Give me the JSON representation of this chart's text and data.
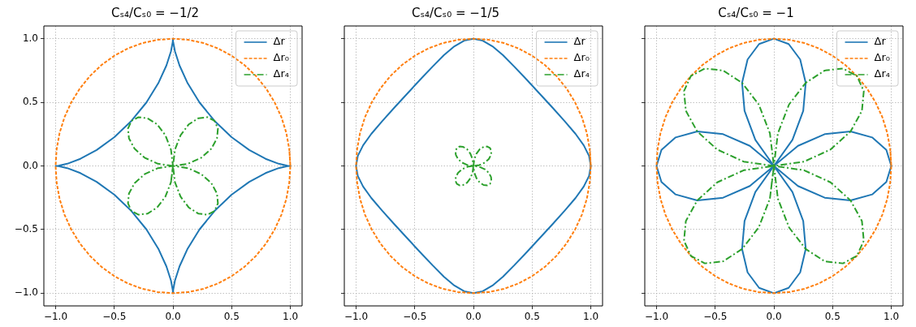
{
  "chart_data": [
    {
      "type": "line",
      "title": "Cₛ₄/Cₛ₀ = −1/2",
      "xlim": [
        -1.1,
        1.1
      ],
      "ylim": [
        -1.1,
        1.1
      ],
      "xticks": [
        {
          "value": -1,
          "label": "−1.0"
        },
        {
          "value": -0.5,
          "label": "−0.5"
        },
        {
          "value": 0,
          "label": "0.0"
        },
        {
          "value": 0.5,
          "label": "0.5"
        },
        {
          "value": 1,
          "label": "1.0"
        }
      ],
      "yticks": [
        {
          "value": -1,
          "label": "−1.0"
        },
        {
          "value": -0.5,
          "label": "−0.5"
        },
        {
          "value": 0,
          "label": "0.0"
        },
        {
          "value": 0.5,
          "label": "0.5"
        },
        {
          "value": 1,
          "label": "1.0"
        }
      ],
      "grid": true,
      "legend": "top right",
      "series": [
        {
          "name": "Δr",
          "color": "#1f77b4",
          "line_style": "solid",
          "x": [
            1,
            0.975,
            0.901,
            0.789,
            0.65,
            0.499,
            0.354,
            0.226,
            0.125,
            0.056,
            0.017,
            0.002,
            0,
            -0.002,
            -0.017,
            -0.056,
            -0.125,
            -0.226,
            -0.354,
            -0.499,
            -0.65,
            -0.789,
            -0.901,
            -0.975,
            -1,
            -0.975,
            -0.901,
            -0.789,
            -0.65,
            -0.499,
            -0.354,
            -0.226,
            -0.125,
            -0.056,
            -0.017,
            -0.002,
            0,
            0.002,
            0.017,
            0.056,
            0.125,
            0.226,
            0.354,
            0.499,
            0.65,
            0.789,
            0.901,
            0.975,
            1,
            0.975
          ],
          "values": [
            0,
            0.002,
            0.017,
            0.056,
            0.125,
            0.226,
            0.354,
            0.499,
            0.65,
            0.789,
            0.901,
            0.975,
            1,
            0.975,
            0.901,
            0.789,
            0.65,
            0.499,
            0.354,
            0.226,
            0.125,
            0.056,
            0.017,
            0.002,
            0,
            -0.002,
            -0.017,
            -0.056,
            -0.125,
            -0.226,
            -0.354,
            -0.499,
            -0.65,
            -0.789,
            -0.901,
            -0.975,
            -1,
            -0.975,
            -0.901,
            -0.789,
            -0.65,
            -0.499,
            -0.354,
            -0.226,
            -0.125,
            -0.056,
            -0.017,
            -0.002,
            0,
            0.002
          ]
        },
        {
          "name": "Δr₀",
          "color": "#ff7f0e",
          "line_style": "dashed",
          "x": [
            1,
            0.991,
            0.966,
            0.924,
            0.866,
            0.793,
            0.707,
            0.609,
            0.5,
            0.383,
            0.259,
            0.131,
            0,
            -0.131,
            -0.259,
            -0.383,
            -0.5,
            -0.609,
            -0.707,
            -0.793,
            -0.866,
            -0.924,
            -0.966,
            -0.991,
            -1,
            -0.991,
            -0.966,
            -0.924,
            -0.866,
            -0.793,
            -0.707,
            -0.609,
            -0.5,
            -0.383,
            -0.259,
            -0.131,
            0,
            0.131,
            0.259,
            0.383,
            0.5,
            0.609,
            0.707,
            0.793,
            0.866,
            0.924,
            0.966,
            0.991,
            1,
            0.991
          ],
          "values": [
            0,
            0.131,
            0.259,
            0.383,
            0.5,
            0.609,
            0.707,
            0.793,
            0.866,
            0.924,
            0.966,
            0.991,
            1,
            0.991,
            0.966,
            0.924,
            0.866,
            0.793,
            0.707,
            0.609,
            0.5,
            0.383,
            0.259,
            0.131,
            0,
            -0.131,
            -0.259,
            -0.383,
            -0.5,
            -0.609,
            -0.707,
            -0.793,
            -0.866,
            -0.924,
            -0.966,
            -0.991,
            -1,
            -0.991,
            -0.966,
            -0.924,
            -0.866,
            -0.793,
            -0.707,
            -0.609,
            -0.5,
            -0.383,
            -0.259,
            -0.131,
            0,
            0.131
          ]
        },
        {
          "name": "Δr₄",
          "color": "#2ca02c",
          "line_style": "dashdot",
          "x": [
            0,
            -0.017,
            -0.065,
            -0.135,
            -0.217,
            -0.294,
            -0.354,
            -0.383,
            -0.375,
            -0.327,
            -0.242,
            -0.128,
            0,
            0.128,
            0.242,
            0.327,
            0.375,
            0.383,
            0.354,
            0.294,
            0.217,
            0.135,
            0.065,
            0.017,
            0,
            0.017,
            0.065,
            0.135,
            0.217,
            0.294,
            0.354,
            0.383,
            0.375,
            0.327,
            0.242,
            0.128,
            0,
            -0.128,
            -0.242,
            -0.327,
            -0.375,
            -0.383,
            -0.354,
            -0.294,
            -0.217,
            -0.135,
            -0.065,
            -0.017,
            0,
            -0.017
          ],
          "values": [
            0,
            -0.128,
            -0.242,
            -0.327,
            -0.375,
            -0.383,
            -0.354,
            -0.294,
            -0.217,
            -0.135,
            -0.065,
            -0.017,
            0,
            -0.017,
            -0.065,
            -0.135,
            -0.217,
            -0.294,
            -0.354,
            -0.383,
            -0.375,
            -0.327,
            -0.242,
            -0.128,
            0,
            0.128,
            0.242,
            0.327,
            0.375,
            0.383,
            0.354,
            0.294,
            0.217,
            0.135,
            0.065,
            0.017,
            0,
            0.017,
            0.065,
            0.135,
            0.217,
            0.294,
            0.354,
            0.383,
            0.375,
            0.327,
            0.242,
            0.128,
            0,
            -0.128
          ]
        }
      ]
    },
    {
      "type": "line",
      "title": "Cₛ₄/Cₛ₀ = −1/5",
      "xlim": [
        -1.1,
        1.1
      ],
      "ylim": [
        -1.1,
        1.1
      ],
      "xticks": [
        {
          "value": -1,
          "label": "−1.0"
        },
        {
          "value": -0.5,
          "label": "−0.5"
        },
        {
          "value": 0,
          "label": "0.0"
        },
        {
          "value": 0.5,
          "label": "0.5"
        },
        {
          "value": 1,
          "label": "1.0"
        }
      ],
      "yticks": [
        {
          "value": -1,
          "label": null
        },
        {
          "value": -0.5,
          "label": null
        },
        {
          "value": 0,
          "label": null
        },
        {
          "value": 0.5,
          "label": null
        },
        {
          "value": 1,
          "label": null
        }
      ],
      "grid": true,
      "legend": "top right",
      "tick_labels": "x",
      "series": [
        {
          "name": "Δr",
          "color": "#1f77b4",
          "line_style": "solid",
          "x": [
            1,
            0.985,
            0.94,
            0.87,
            0.779,
            0.676,
            0.566,
            0.456,
            0.35,
            0.252,
            0.162,
            0.079,
            0,
            -0.079,
            -0.162,
            -0.252,
            -0.35,
            -0.456,
            -0.566,
            -0.676,
            -0.779,
            -0.87,
            -0.94,
            -0.985,
            -1,
            -0.985,
            -0.94,
            -0.87,
            -0.779,
            -0.676,
            -0.566,
            -0.456,
            -0.35,
            -0.252,
            -0.162,
            -0.079,
            0,
            0.079,
            0.162,
            0.252,
            0.35,
            0.456,
            0.566,
            0.676,
            0.779,
            0.87,
            0.94,
            0.985,
            1,
            0.985
          ],
          "values": [
            0,
            0.079,
            0.162,
            0.252,
            0.35,
            0.456,
            0.566,
            0.676,
            0.779,
            0.87,
            0.94,
            0.985,
            1,
            0.985,
            0.94,
            0.87,
            0.779,
            0.676,
            0.566,
            0.456,
            0.35,
            0.252,
            0.162,
            0.079,
            0,
            -0.079,
            -0.162,
            -0.252,
            -0.35,
            -0.456,
            -0.566,
            -0.676,
            -0.779,
            -0.87,
            -0.94,
            -0.985,
            -1,
            -0.985,
            -0.94,
            -0.87,
            -0.779,
            -0.676,
            -0.566,
            -0.456,
            -0.35,
            -0.252,
            -0.162,
            -0.079,
            0,
            0.079
          ]
        },
        {
          "name": "Δr₀",
          "color": "#ff7f0e",
          "line_style": "dashed",
          "x": [
            1,
            0.991,
            0.966,
            0.924,
            0.866,
            0.793,
            0.707,
            0.609,
            0.5,
            0.383,
            0.259,
            0.131,
            0,
            -0.131,
            -0.259,
            -0.383,
            -0.5,
            -0.609,
            -0.707,
            -0.793,
            -0.866,
            -0.924,
            -0.966,
            -0.991,
            -1,
            -0.991,
            -0.966,
            -0.924,
            -0.866,
            -0.793,
            -0.707,
            -0.609,
            -0.5,
            -0.383,
            -0.259,
            -0.131,
            0,
            0.131,
            0.259,
            0.383,
            0.5,
            0.609,
            0.707,
            0.793,
            0.866,
            0.924,
            0.966,
            0.991,
            1,
            0.991
          ],
          "values": [
            0,
            0.131,
            0.259,
            0.383,
            0.5,
            0.609,
            0.707,
            0.793,
            0.866,
            0.924,
            0.966,
            0.991,
            1,
            0.991,
            0.966,
            0.924,
            0.866,
            0.793,
            0.707,
            0.609,
            0.5,
            0.383,
            0.259,
            0.131,
            0,
            -0.131,
            -0.259,
            -0.383,
            -0.5,
            -0.609,
            -0.707,
            -0.793,
            -0.866,
            -0.924,
            -0.966,
            -0.991,
            -1,
            -0.991,
            -0.966,
            -0.924,
            -0.866,
            -0.793,
            -0.707,
            -0.609,
            -0.5,
            -0.383,
            -0.259,
            -0.131,
            0,
            0.131
          ]
        },
        {
          "name": "Δr₄",
          "color": "#2ca02c",
          "line_style": "dashdot",
          "x": [
            0,
            -0.007,
            -0.026,
            -0.054,
            -0.087,
            -0.118,
            -0.141,
            -0.153,
            -0.15,
            -0.131,
            -0.097,
            -0.051,
            0,
            0.051,
            0.097,
            0.131,
            0.15,
            0.153,
            0.141,
            0.118,
            0.087,
            0.054,
            0.026,
            0.007,
            0,
            0.007,
            0.026,
            0.054,
            0.087,
            0.118,
            0.141,
            0.153,
            0.15,
            0.131,
            0.097,
            0.051,
            0,
            -0.051,
            -0.097,
            -0.131,
            -0.15,
            -0.153,
            -0.141,
            -0.118,
            -0.087,
            -0.054,
            -0.026,
            -0.007,
            0,
            -0.007
          ],
          "values": [
            0,
            -0.051,
            -0.097,
            -0.131,
            -0.15,
            -0.153,
            -0.141,
            -0.118,
            -0.087,
            -0.054,
            -0.026,
            -0.007,
            0,
            -0.007,
            -0.026,
            -0.054,
            -0.087,
            -0.118,
            -0.141,
            -0.153,
            -0.15,
            -0.131,
            -0.097,
            -0.051,
            0,
            0.051,
            0.097,
            0.131,
            0.15,
            0.153,
            0.141,
            0.118,
            0.087,
            0.054,
            0.026,
            0.007,
            0,
            0.007,
            0.026,
            0.054,
            0.087,
            0.118,
            0.141,
            0.153,
            0.15,
            0.131,
            0.097,
            0.051,
            0,
            -0.051
          ]
        }
      ]
    },
    {
      "type": "line",
      "title": "Cₛ₄/Cₛ₀ = −1",
      "xlim": [
        -1.1,
        1.1
      ],
      "ylim": [
        -1.1,
        1.1
      ],
      "xticks": [
        {
          "value": -1,
          "label": "−1.0"
        },
        {
          "value": -0.5,
          "label": "−0.5"
        },
        {
          "value": 0,
          "label": "0.0"
        },
        {
          "value": 0.5,
          "label": "0.5"
        },
        {
          "value": 1,
          "label": "1.0"
        }
      ],
      "yticks": [
        {
          "value": -1,
          "label": null
        },
        {
          "value": -0.5,
          "label": null
        },
        {
          "value": 0,
          "label": null
        },
        {
          "value": 0.5,
          "label": null
        },
        {
          "value": 1,
          "label": null
        }
      ],
      "grid": true,
      "legend": "top right",
      "tick_labels": "x",
      "series": [
        {
          "name": "Δr",
          "color": "#1f77b4",
          "line_style": "solid",
          "x": [
            0,
            0.205,
            0.433,
            0.653,
            0.837,
            0.958,
            1,
            0.958,
            0.837,
            0.653,
            0.433,
            0.205,
            0,
            0.158,
            0.25,
            0.271,
            0.224,
            0.126,
            0,
            -0.126,
            -0.224,
            -0.271,
            -0.25,
            -0.158,
            0,
            -0.205,
            -0.433,
            -0.653,
            -0.837,
            -0.958,
            -1,
            -0.958,
            -0.837,
            -0.653,
            -0.433,
            -0.205,
            0,
            -0.158,
            -0.25,
            -0.271,
            -0.224,
            -0.126,
            0,
            0.126,
            0.224,
            0.271,
            0.25,
            0.158,
            0,
            0.205
          ],
          "values": [
            0,
            -0.158,
            -0.25,
            -0.271,
            -0.224,
            -0.126,
            0,
            0.126,
            0.224,
            0.271,
            0.25,
            0.158,
            0,
            0.205,
            0.433,
            0.653,
            0.837,
            0.958,
            1,
            0.958,
            0.837,
            0.653,
            0.433,
            0.205,
            0,
            0.158,
            0.25,
            0.271,
            0.224,
            0.126,
            0,
            -0.126,
            -0.224,
            -0.271,
            -0.25,
            -0.158,
            0,
            -0.205,
            -0.433,
            -0.653,
            -0.837,
            -0.958,
            -1,
            -0.958,
            -0.837,
            -0.653,
            -0.433,
            -0.205,
            0,
            -0.158
          ]
        },
        {
          "name": "Δr₀",
          "color": "#ff7f0e",
          "line_style": "dashed",
          "x": [
            1,
            0.991,
            0.966,
            0.924,
            0.866,
            0.793,
            0.707,
            0.609,
            0.5,
            0.383,
            0.259,
            0.131,
            0,
            -0.131,
            -0.259,
            -0.383,
            -0.5,
            -0.609,
            -0.707,
            -0.793,
            -0.866,
            -0.924,
            -0.966,
            -0.991,
            -1,
            -0.991,
            -0.966,
            -0.924,
            -0.866,
            -0.793,
            -0.707,
            -0.609,
            -0.5,
            -0.383,
            -0.259,
            -0.131,
            0,
            0.131,
            0.259,
            0.383,
            0.5,
            0.609,
            0.707,
            0.793,
            0.866,
            0.924,
            0.966,
            0.991,
            1,
            0.991
          ],
          "values": [
            0,
            0.131,
            0.259,
            0.383,
            0.5,
            0.609,
            0.707,
            0.793,
            0.866,
            0.924,
            0.966,
            0.991,
            1,
            0.991,
            0.966,
            0.924,
            0.866,
            0.793,
            0.707,
            0.609,
            0.5,
            0.383,
            0.259,
            0.131,
            0,
            -0.131,
            -0.259,
            -0.383,
            -0.5,
            -0.609,
            -0.707,
            -0.793,
            -0.866,
            -0.924,
            -0.966,
            -0.991,
            -1,
            -0.991,
            -0.966,
            -0.924,
            -0.866,
            -0.793,
            -0.707,
            -0.609,
            -0.5,
            -0.383,
            -0.259,
            -0.131,
            0,
            0.131
          ]
        },
        {
          "name": "Δr₄",
          "color": "#2ca02c",
          "line_style": "dashdot",
          "x": [
            0,
            -0.034,
            -0.129,
            -0.271,
            -0.433,
            -0.588,
            -0.707,
            -0.766,
            -0.75,
            -0.653,
            -0.483,
            -0.257,
            0,
            0.257,
            0.483,
            0.653,
            0.75,
            0.766,
            0.707,
            0.588,
            0.433,
            0.271,
            0.129,
            0.034,
            0,
            0.034,
            0.129,
            0.271,
            0.433,
            0.588,
            0.707,
            0.766,
            0.75,
            0.653,
            0.483,
            0.257,
            0,
            -0.257,
            -0.483,
            -0.653,
            -0.75,
            -0.766,
            -0.707,
            -0.588,
            -0.433,
            -0.271,
            -0.129,
            -0.034,
            0,
            -0.034
          ],
          "values": [
            0,
            -0.257,
            -0.483,
            -0.653,
            -0.75,
            -0.766,
            -0.707,
            -0.588,
            -0.433,
            -0.271,
            -0.129,
            -0.034,
            0,
            -0.034,
            -0.129,
            -0.271,
            -0.433,
            -0.588,
            -0.707,
            -0.766,
            -0.75,
            -0.653,
            -0.483,
            -0.257,
            0,
            0.257,
            0.483,
            0.653,
            0.75,
            0.766,
            0.707,
            0.588,
            0.433,
            0.271,
            0.129,
            0.034,
            0,
            0.034,
            0.129,
            0.271,
            0.433,
            0.588,
            0.707,
            0.766,
            0.75,
            0.653,
            0.483,
            0.257,
            0,
            -0.257
          ]
        }
      ]
    }
  ]
}
